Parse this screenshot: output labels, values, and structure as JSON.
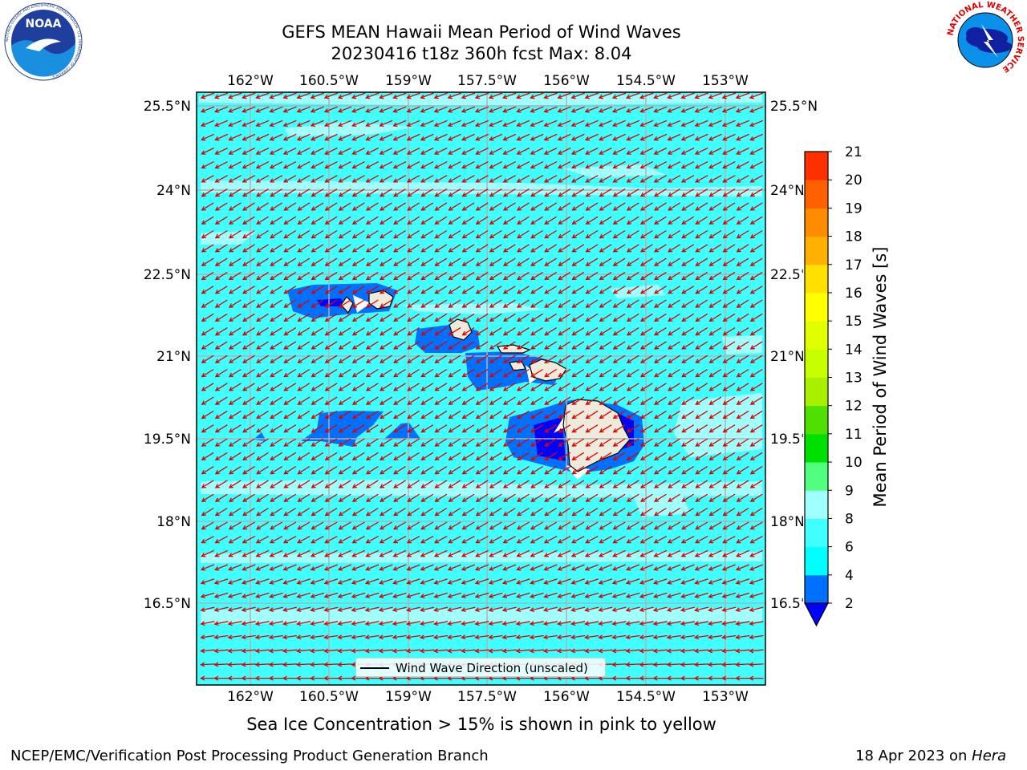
{
  "title_line1": "GEFS MEAN Hawaii Mean Period of Wind Waves",
  "title_line2": "20230416 t18z 360h fcst   Max: 8.04",
  "lon_labels": [
    "162°W",
    "160.5°W",
    "159°W",
    "157.5°W",
    "156°W",
    "154.5°W",
    "153°W"
  ],
  "lat_labels": [
    "25.5°N",
    "24°N",
    "22.5°N",
    "21°N",
    "19.5°N",
    "18°N",
    "16.5°N"
  ],
  "colorbar": {
    "label": "Mean Period of Wind Waves [s]",
    "ticks": [
      "2",
      "4",
      "6",
      "8",
      "9",
      "10",
      "11",
      "12",
      "13",
      "14",
      "15",
      "16",
      "17",
      "18",
      "19",
      "20",
      "21"
    ],
    "colors": [
      "#0070ff",
      "#00ffff",
      "#40ffff",
      "#a0ffff",
      "#50ff80",
      "#00e000",
      "#50e000",
      "#a8f000",
      "#c8ff00",
      "#e0ff00",
      "#ffff00",
      "#ffe000",
      "#ffb000",
      "#ff8c00",
      "#ff6000",
      "#ff3000",
      "#ff0000"
    ],
    "under_color": "#0000ff"
  },
  "legend_text": "Wind Wave Direction (unscaled)",
  "subtitle": "Sea Ice Concentration > 15% is shown in pink to yellow",
  "footer_left": "NCEP/EMC/Verification Post Processing Product Generation Branch",
  "footer_right_prefix": "18 Apr 2023 on ",
  "footer_right_host": "Hera",
  "logo_left": "noaa-logo",
  "logo_right": "nws-logo",
  "logo_left_text": "NOAA",
  "logo_left_ring_text": "NATIONAL OCEANIC AND ATMOSPHERIC ADMINISTRATION · U.S. DEPARTMENT OF COMMERCE",
  "logo_right_ring_text": "NATIONAL WEATHER SERVICE",
  "colors": {
    "ocean": "#40ffff",
    "ocean_light": "#a0ffff",
    "near_island": "#0070ff",
    "deep_blue": "#0000ff",
    "land": "#efebdc",
    "arrow": "#e00000",
    "grid": "#b0b0b0"
  }
}
